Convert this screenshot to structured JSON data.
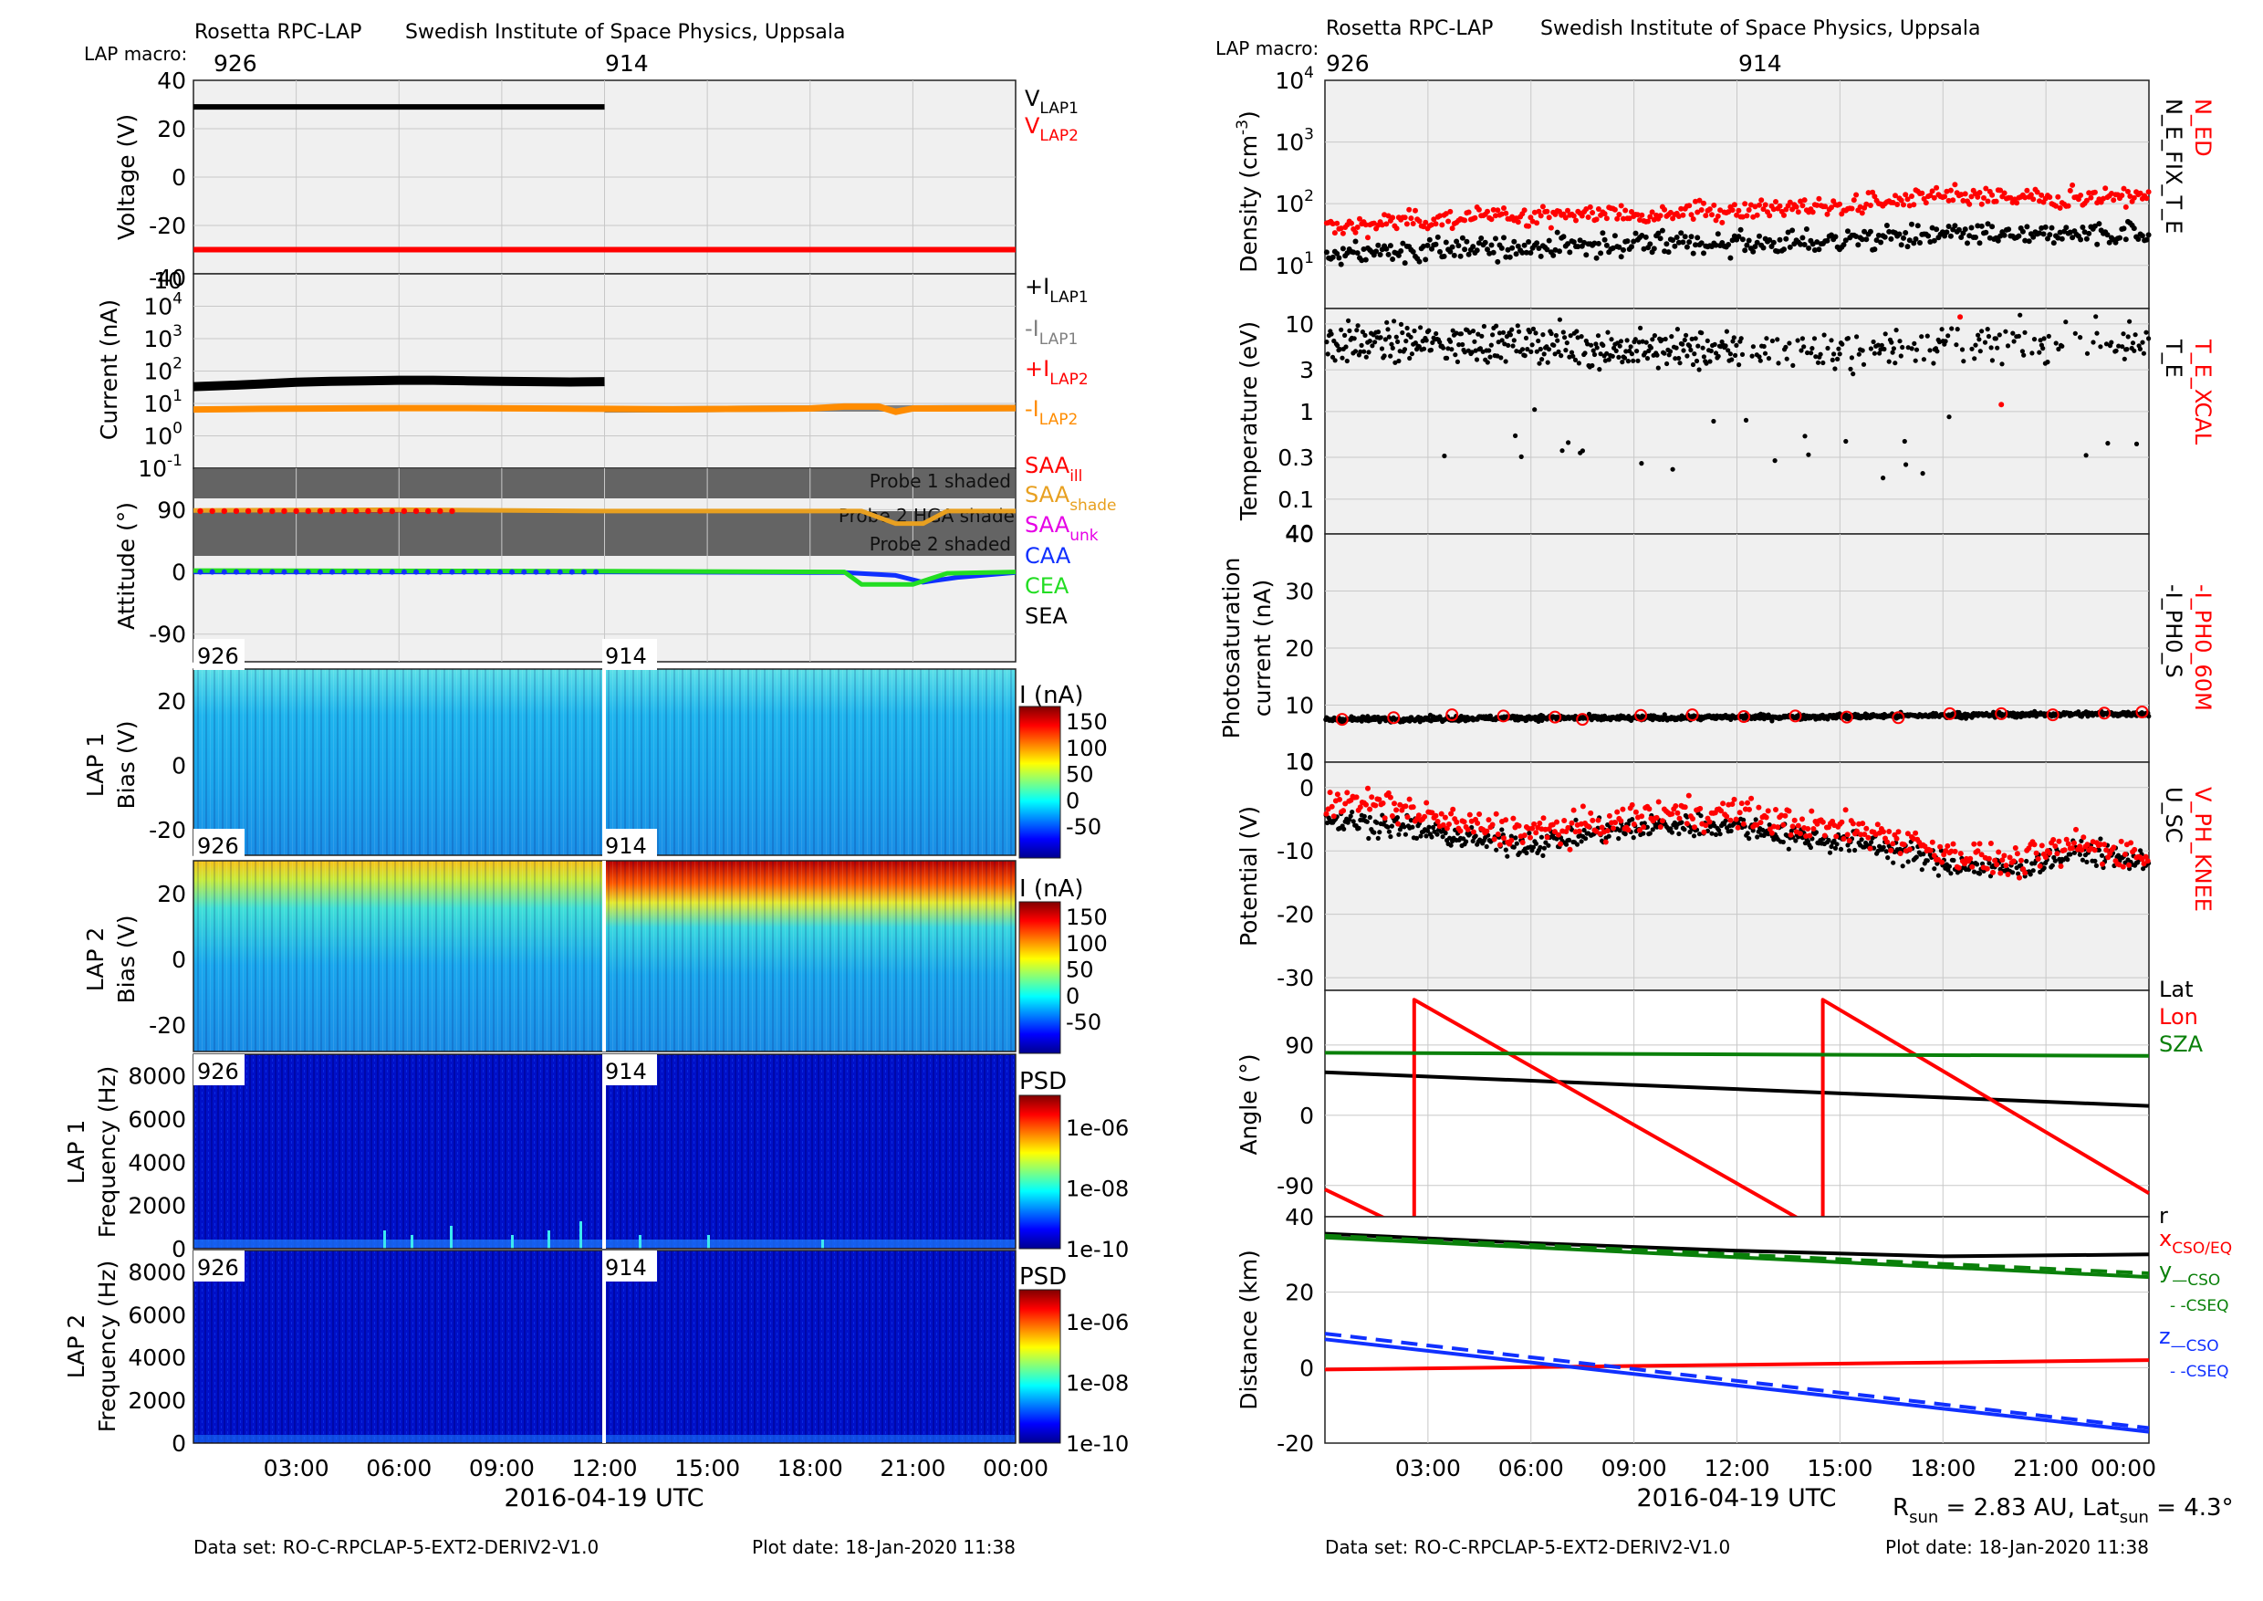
{
  "header": {
    "left": {
      "macro_label": "LAP macro:",
      "instrument": "Rosetta RPC-LAP",
      "institute": "Swedish Institute of Space Physics, Uppsala",
      "macros": [
        "926",
        "914"
      ]
    },
    "right": {
      "macro_label": "LAP macro:",
      "instrument": "Rosetta RPC-LAP",
      "institute": "Swedish Institute of Space Physics, Uppsala",
      "macros": [
        "926",
        "914"
      ]
    }
  },
  "footer": {
    "dataset": "Data set: RO-C-RPCLAP-5-EXT2-DERIV2-V1.0",
    "plot_date": "Plot date: 18-Jan-2020 11:38",
    "xlabel": "2016-04-19 UTC",
    "sun_info": {
      "r_label": "R",
      "r_sub": "sun",
      "r_value": " = 2.83 AU, Lat",
      "lat_sub": "sun",
      "lat_value": " = 4.3°"
    }
  },
  "colors": {
    "lap1": "#000000",
    "lap2": "#ff0000",
    "neg_lap1": "#808080",
    "neg_lap2": "#ff8c00",
    "saa_ill": "#ff0000",
    "saa_shade": "#e8a020",
    "saa_unk": "#e600e6",
    "caa": "#1030ff",
    "cea": "#22dd22",
    "sea": "#000000",
    "green_dark": "#0a800a",
    "panel_bg": "#f0f0f0",
    "shade_band": "#646464"
  },
  "chart_data": [
    {
      "type": "line",
      "panel": "voltage",
      "ylabel": "Voltage (V)",
      "yticks": [
        "40",
        "20",
        "0",
        "-20",
        "-40"
      ],
      "ylim": [
        -40,
        40
      ],
      "xticks": [
        "03:00",
        "06:00",
        "09:00",
        "12:00",
        "15:00",
        "18:00",
        "21:00",
        "00:00"
      ],
      "series": [
        {
          "name": "V",
          "sub": "LAP1",
          "segments": [
            {
              "x": [
                0,
                12
              ],
              "y": [
                29,
                29
              ]
            }
          ]
        },
        {
          "name": "V",
          "sub": "LAP2",
          "segments": [
            {
              "x": [
                0,
                24
              ],
              "y": [
                -30,
                -30
              ]
            }
          ]
        }
      ]
    },
    {
      "type": "line",
      "panel": "current",
      "ylabel": "Current (nA)",
      "yscale": "log",
      "ylim": [
        0.1,
        100000
      ],
      "yticks": [
        {
          "base": "10",
          "exp": "4"
        },
        {
          "base": "10",
          "exp": "3"
        },
        {
          "base": "10",
          "exp": "2"
        },
        {
          "base": "10",
          "exp": "1"
        },
        {
          "base": "10",
          "exp": "0"
        },
        {
          "base": "10",
          "exp": "-1"
        }
      ],
      "series": [
        {
          "name": "+I",
          "sub": "LAP1",
          "x": [
            0,
            1,
            2,
            3,
            4,
            5,
            6,
            7,
            8,
            9,
            10,
            11,
            12
          ],
          "y": [
            33,
            36,
            40,
            45,
            48,
            50,
            52,
            52,
            50,
            48,
            47,
            46,
            47
          ]
        },
        {
          "name": "-I",
          "sub": "LAP1",
          "x": [
            12,
            14,
            16,
            18,
            20,
            22,
            24
          ],
          "y": [
            6.5,
            6.6,
            6.8,
            7.0,
            7.0,
            7.1,
            7.2
          ]
        },
        {
          "name": "+I",
          "sub": "LAP2",
          "x": [],
          "y": []
        },
        {
          "name": "-I",
          "sub": "LAP2",
          "x": [
            0,
            2,
            4,
            6,
            8,
            10,
            12,
            14,
            16,
            18,
            19,
            20,
            20.5,
            21,
            22,
            24
          ],
          "y": [
            6.5,
            6.8,
            7.0,
            7.2,
            7.2,
            7.0,
            6.8,
            6.6,
            6.8,
            7.0,
            8.0,
            8.0,
            5.5,
            7.0,
            7.0,
            7.2
          ]
        }
      ]
    },
    {
      "type": "line",
      "panel": "attitude",
      "ylabel": "Attitude (°)",
      "yticks": [
        "90",
        "0",
        "-90"
      ],
      "ylim": [
        -130,
        150
      ],
      "bands": [
        "Probe 1 shaded",
        "Probe 2 HGA shade",
        "Probe 2 shaded"
      ],
      "series": [
        {
          "name": "SAA",
          "sub": "ill",
          "x": [
            0,
            1.5,
            3,
            4.5,
            6,
            7.5
          ],
          "y": [
            88,
            88,
            88,
            88,
            88,
            88
          ]
        },
        {
          "name": "SAA",
          "sub": "shade",
          "x": [
            0,
            6,
            12,
            18,
            19.5,
            20.5,
            21.3,
            22,
            24
          ],
          "y": [
            89,
            90,
            88,
            88,
            88,
            70,
            70,
            88,
            88
          ]
        },
        {
          "name": "SAA",
          "sub": "unk",
          "x": [],
          "y": []
        },
        {
          "name": "CAA",
          "sub": "",
          "x": [
            0,
            12,
            19,
            20.5,
            21.3,
            22.3,
            24
          ],
          "y": [
            0,
            0,
            -1,
            -5,
            -15,
            -8,
            -1
          ]
        },
        {
          "name": "CEA",
          "sub": "",
          "x": [
            0,
            12,
            19,
            19.5,
            21,
            22,
            24
          ],
          "y": [
            2,
            1,
            0,
            -18,
            -18,
            -2,
            0
          ]
        },
        {
          "name": "SEA",
          "sub": "",
          "x": [],
          "y": []
        }
      ]
    },
    {
      "type": "heatmap",
      "panel": "lap1_bias",
      "ylabel": "LAP 1",
      "ylabel2": "Bias (V)",
      "yticks": [
        "20",
        "0",
        "-20"
      ],
      "ylim": [
        -28,
        30
      ],
      "cbar_label": "I (nA)",
      "cbar_ticks": [
        "150",
        "100",
        "50",
        "0",
        "-50"
      ],
      "zlim": [
        -50,
        150
      ],
      "macros": [
        "926",
        "914"
      ]
    },
    {
      "type": "heatmap",
      "panel": "lap2_bias",
      "ylabel": "LAP 2",
      "ylabel2": "Bias (V)",
      "yticks": [
        "20",
        "0",
        "-20"
      ],
      "ylim": [
        -28,
        30
      ],
      "cbar_label": "I (nA)",
      "cbar_ticks": [
        "150",
        "100",
        "50",
        "0",
        "-50"
      ],
      "zlim": [
        -50,
        150
      ],
      "macros": [
        "926",
        "914"
      ]
    },
    {
      "type": "heatmap",
      "panel": "lap1_psd",
      "ylabel": "LAP 1",
      "ylabel2": "Frequency (Hz)",
      "yticks": [
        "8000",
        "6000",
        "4000",
        "2000",
        "0"
      ],
      "ylim": [
        0,
        9000
      ],
      "cbar_label": "PSD",
      "cbar_ticks": [
        "1e-06",
        "1e-08",
        "1e-10"
      ],
      "macros": [
        "926",
        "914"
      ]
    },
    {
      "type": "heatmap",
      "panel": "lap2_psd",
      "ylabel": "LAP 2",
      "ylabel2": "Frequency (Hz)",
      "yticks": [
        "8000",
        "6000",
        "4000",
        "2000",
        "0"
      ],
      "ylim": [
        0,
        9000
      ],
      "cbar_label": "PSD",
      "cbar_ticks": [
        "1e-06",
        "1e-08",
        "1e-10"
      ],
      "macros": [
        "926",
        "914"
      ]
    },
    {
      "type": "scatter",
      "panel": "density",
      "ylabel": "Density (cm",
      "ylabel_exp": "-3",
      "ylabel_end": ")",
      "yscale": "log",
      "ylim": [
        2,
        10000
      ],
      "yticks": [
        {
          "base": "10",
          "exp": "4"
        },
        {
          "base": "10",
          "exp": "3"
        },
        {
          "base": "10",
          "exp": "2"
        },
        {
          "base": "10",
          "exp": "1"
        }
      ],
      "series": [
        {
          "name": "N_ED",
          "x": [
            0,
            3,
            6,
            9,
            12,
            15,
            18,
            21,
            24
          ],
          "y": [
            40,
            55,
            65,
            70,
            80,
            90,
            130,
            120,
            140
          ]
        },
        {
          "name": "N_E_FIX_T_E",
          "x": [
            0,
            3,
            6,
            9,
            12,
            15,
            18,
            21,
            24
          ],
          "y": [
            14,
            18,
            20,
            22,
            22,
            25,
            32,
            30,
            35
          ]
        }
      ]
    },
    {
      "type": "scatter",
      "panel": "temperature",
      "ylabel": "Temperature (eV)",
      "yscale": "log",
      "ylim": [
        0.04,
        15
      ],
      "yticks": [
        "10",
        "3",
        "1",
        "0.3",
        "0.1"
      ],
      "series": [
        {
          "name": "T_E_XCAL",
          "x": [
            18.5,
            19.7
          ],
          "y": [
            12,
            1.2
          ]
        },
        {
          "name": "T_E",
          "x": [
            0,
            3,
            6,
            9,
            12,
            15,
            18,
            21,
            24
          ],
          "y": [
            6,
            6,
            6,
            5,
            5,
            5,
            6,
            6,
            6
          ]
        }
      ]
    },
    {
      "type": "scatter",
      "panel": "photosaturation",
      "ylabel": "Photosaturation",
      "ylabel2": "current (nA)",
      "ylim": [
        0,
        40
      ],
      "yticks": [
        "40",
        "30",
        "20",
        "10",
        "0"
      ],
      "series": [
        {
          "name": "-I_PH0_60M",
          "x": [
            0.5,
            2,
            3.7,
            5.2,
            6.7,
            7.5,
            9.2,
            10.7,
            12.2,
            13.7,
            15.2,
            16.7,
            18.2,
            19.7,
            21.2,
            22.7,
            23.8
          ],
          "y": [
            7.5,
            7.8,
            8.3,
            8.1,
            7.9,
            7.5,
            8.2,
            8.3,
            8.0,
            8.1,
            7.9,
            7.8,
            8.5,
            8.5,
            8.3,
            8.6,
            8.8
          ]
        },
        {
          "name": "-I_PH0_S",
          "x": [
            0,
            3,
            6,
            9,
            12,
            15,
            18,
            21,
            24
          ],
          "y": [
            7.5,
            7.6,
            7.8,
            7.7,
            7.9,
            8.0,
            8.2,
            8.4,
            8.5
          ]
        }
      ]
    },
    {
      "type": "scatter",
      "panel": "potential",
      "ylabel": "Potential (V)",
      "ylim": [
        -32,
        4
      ],
      "yticks": [
        "0",
        "-10",
        "-20",
        "-30"
      ],
      "series": [
        {
          "name": "V_PH_KNEE",
          "x": [
            0,
            2,
            4,
            6,
            8,
            10,
            12,
            14,
            16,
            18,
            20,
            22,
            24
          ],
          "y": [
            -2,
            -3,
            -6,
            -7,
            -6,
            -4,
            -4,
            -6,
            -7,
            -10,
            -12,
            -9,
            -11
          ]
        },
        {
          "name": "U_SC",
          "x": [
            0,
            2,
            4,
            6,
            8,
            10,
            12,
            14,
            16,
            18,
            20,
            22,
            24
          ],
          "y": [
            -5,
            -6,
            -8,
            -9,
            -7,
            -6,
            -6,
            -8,
            -9,
            -12,
            -13,
            -10,
            -12
          ]
        }
      ]
    },
    {
      "type": "line",
      "panel": "angle",
      "ylabel": "Angle (°)",
      "ylim": [
        -130,
        160
      ],
      "yticks": [
        "90",
        "0",
        "-90"
      ],
      "series": [
        {
          "name": "Lat",
          "x": [
            0,
            24
          ],
          "y": [
            55,
            12
          ]
        },
        {
          "name": "Lon",
          "x": [
            0,
            2.6,
            2.6,
            14.5,
            14.5,
            24
          ],
          "y": [
            -95,
            -150,
            148,
            -150,
            148,
            -100
          ]
        },
        {
          "name": "SZA",
          "x": [
            0,
            24
          ],
          "y": [
            80,
            76
          ]
        }
      ]
    },
    {
      "type": "line",
      "panel": "distance",
      "ylabel": "Distance (km)",
      "ylim": [
        -20,
        40
      ],
      "yticks": [
        "40",
        "20",
        "0",
        "-20"
      ],
      "xticks": [
        "03:00",
        "06:00",
        "09:00",
        "12:00",
        "15:00",
        "18:00",
        "21:00",
        "00:00"
      ],
      "series": [
        {
          "name": "r",
          "x": [
            0,
            6,
            12,
            18,
            24
          ],
          "y": [
            35.5,
            33,
            31,
            29.5,
            30
          ]
        },
        {
          "name": "x",
          "sub": "CSO/EQ",
          "x": [
            0,
            24
          ],
          "y": [
            -0.5,
            2
          ]
        },
        {
          "name": "y",
          "sub": "—CSO",
          "x": [
            0,
            24
          ],
          "y": [
            34.5,
            24
          ]
        },
        {
          "name": "y",
          "sub": "- -CSEQ",
          "x": [
            0,
            24
          ],
          "y": [
            35,
            25
          ]
        },
        {
          "name": "z",
          "sub": "—CSO",
          "x": [
            0,
            24
          ],
          "y": [
            7.5,
            -17
          ]
        },
        {
          "name": "z",
          "sub": "- -CSEQ",
          "x": [
            0,
            24
          ],
          "y": [
            9,
            -16
          ]
        }
      ]
    }
  ]
}
